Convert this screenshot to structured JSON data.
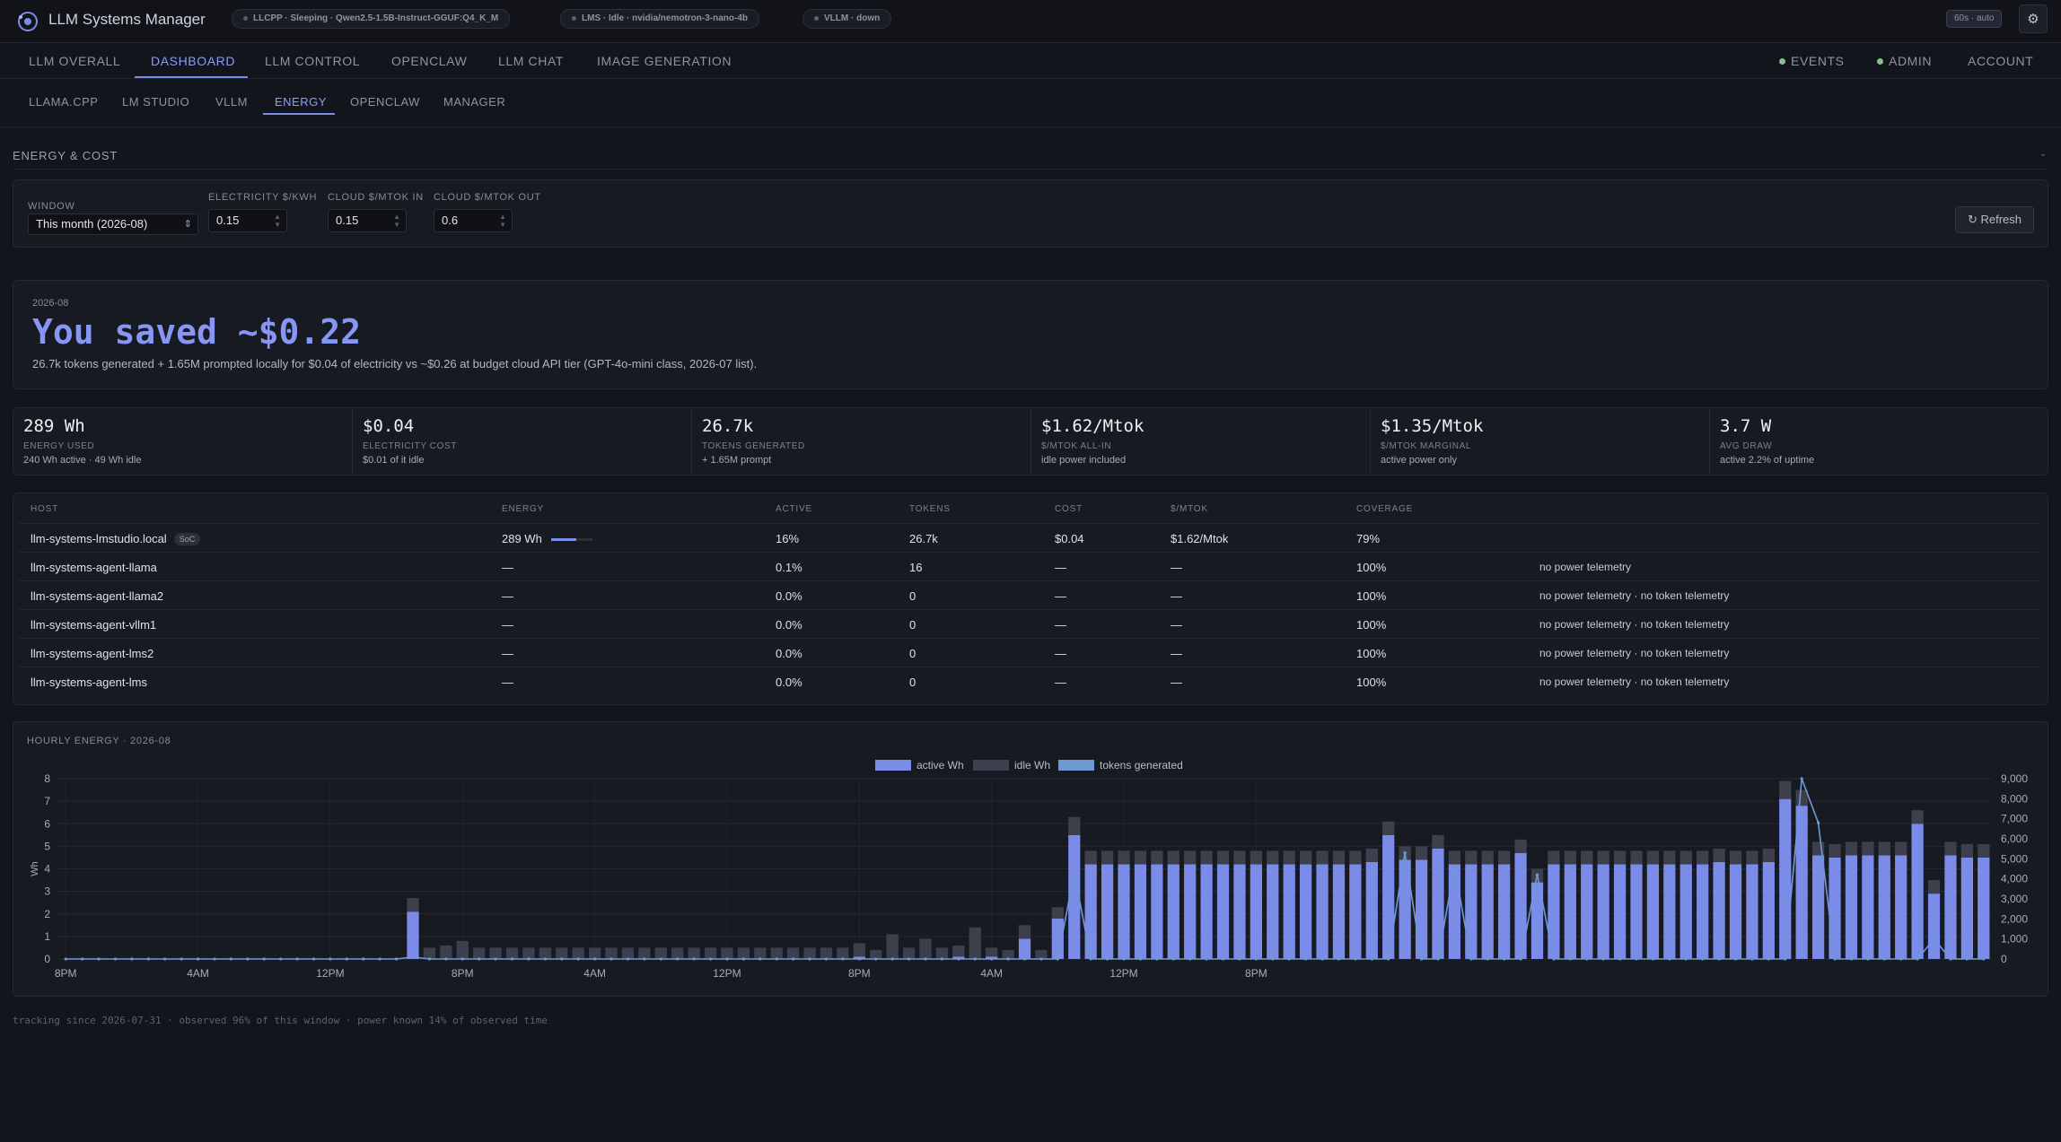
{
  "app": {
    "title": "LLM Systems Manager"
  },
  "status_pills": [
    {
      "text": "LLCPP · Sleeping · Qwen2.5-1.5B-Instruct-GGUF:Q4_K_M"
    },
    {
      "text": "LMS · Idle · nvidia/nemotron-3-nano-4b"
    },
    {
      "text": "VLLM · down"
    }
  ],
  "refresh_chip": "60s · auto",
  "settings_icon": "gear-icon",
  "main_nav": {
    "tabs": [
      "LLM OVERALL",
      "DASHBOARD",
      "LLM CONTROL",
      "OPENCLAW",
      "LLM CHAT",
      "IMAGE GENERATION"
    ],
    "active": "DASHBOARD",
    "right": [
      "EVENTS",
      "ADMIN",
      "ACCOUNT"
    ]
  },
  "sub_nav": {
    "tabs": [
      "LLAMA.CPP",
      "LM STUDIO",
      "VLLM",
      "ENERGY",
      "OPENCLAW",
      "MANAGER"
    ],
    "active": "ENERGY"
  },
  "section": {
    "title": "ENERGY & COST"
  },
  "controls": {
    "window_label": "WINDOW",
    "window_value": "This month (2026-08)",
    "electricity_label": "ELECTRICITY $/KWH",
    "electricity_value": "0.15",
    "cloud_in_label": "CLOUD $/MTOK IN",
    "cloud_in_value": "0.15",
    "cloud_out_label": "CLOUD $/MTOK OUT",
    "cloud_out_value": "0.6",
    "refresh_label": "↻ Refresh"
  },
  "savings": {
    "period": "2026-08",
    "headline": "You saved ~$0.22",
    "description": "26.7k tokens generated + 1.65M prompted locally for $0.04 of electricity vs ~$0.26 at budget cloud API tier (GPT-4o-mini class, 2026-07 list)."
  },
  "kpis": [
    {
      "value": "289 Wh",
      "label": "ENERGY USED",
      "sub": "240 Wh active · 49 Wh idle"
    },
    {
      "value": "$0.04",
      "label": "ELECTRICITY COST",
      "sub": "$0.01 of it idle"
    },
    {
      "value": "26.7k",
      "label": "TOKENS GENERATED",
      "sub": "+ 1.65M prompt"
    },
    {
      "value": "$1.62/Mtok",
      "label": "$/MTOK ALL-IN",
      "sub": "idle power included"
    },
    {
      "value": "$1.35/Mtok",
      "label": "$/MTOK MARGINAL",
      "sub": "active power only"
    },
    {
      "value": "3.7 W",
      "label": "AVG DRAW",
      "sub": "active 2.2% of uptime"
    }
  ],
  "table": {
    "columns": [
      "HOST",
      "ENERGY",
      "ACTIVE",
      "TOKENS",
      "COST",
      "$/MTOK",
      "COVERAGE"
    ],
    "rows": [
      {
        "host": "llm-systems-lmstudio.local",
        "badge": "SoC",
        "energy": "289 Wh",
        "energy_fraction": 0.62,
        "active": "16%",
        "tokens": "26.7k",
        "cost": "$0.04",
        "mtok": "$1.62/Mtok",
        "coverage": "79%",
        "note": ""
      },
      {
        "host": "llm-systems-agent-llama",
        "badge": "",
        "energy": "—",
        "energy_fraction": 0,
        "active": "0.1%",
        "tokens": "16",
        "cost": "—",
        "mtok": "—",
        "coverage": "100%",
        "note": "no power telemetry"
      },
      {
        "host": "llm-systems-agent-llama2",
        "badge": "",
        "energy": "—",
        "energy_fraction": 0,
        "active": "0.0%",
        "tokens": "0",
        "cost": "—",
        "mtok": "—",
        "coverage": "100%",
        "note": "no power telemetry · no token telemetry"
      },
      {
        "host": "llm-systems-agent-vllm1",
        "badge": "",
        "energy": "—",
        "energy_fraction": 0,
        "active": "0.0%",
        "tokens": "0",
        "cost": "—",
        "mtok": "—",
        "coverage": "100%",
        "note": "no power telemetry · no token telemetry"
      },
      {
        "host": "llm-systems-agent-lms2",
        "badge": "",
        "energy": "—",
        "energy_fraction": 0,
        "active": "0.0%",
        "tokens": "0",
        "cost": "—",
        "mtok": "—",
        "coverage": "100%",
        "note": "no power telemetry · no token telemetry"
      },
      {
        "host": "llm-systems-agent-lms",
        "badge": "",
        "energy": "—",
        "energy_fraction": 0,
        "active": "0.0%",
        "tokens": "0",
        "cost": "—",
        "mtok": "—",
        "coverage": "100%",
        "note": "no power telemetry · no token telemetry"
      }
    ]
  },
  "chart_title": "HOURLY ENERGY · 2026-08",
  "chart_data": {
    "type": "bar",
    "title": "HOURLY ENERGY · 2026-08",
    "ylabel": "Wh",
    "ylim": [
      0,
      8
    ],
    "y2lim": [
      0,
      9000
    ],
    "yticks": [
      0,
      1,
      2,
      3,
      4,
      5,
      6,
      7,
      8
    ],
    "y2ticks": [
      "0",
      "1,000",
      "2,000",
      "3,000",
      "4,000",
      "5,000",
      "6,000",
      "7,000",
      "8,000",
      "9,000"
    ],
    "xtick_labels": [
      "8PM",
      "4AM",
      "12PM",
      "8PM",
      "4AM",
      "12PM",
      "8PM",
      "4AM",
      "12PM",
      "8PM"
    ],
    "xtick_hours": [
      0,
      8,
      16,
      24,
      32,
      40,
      48,
      56,
      64,
      72
    ],
    "grid": true,
    "legend_position": "top-center",
    "series": [
      {
        "name": "active Wh",
        "color": "#7b8be8",
        "values": [
          0,
          0,
          0,
          0,
          0,
          0,
          0,
          0,
          0,
          0,
          0,
          0,
          0,
          0,
          0,
          0,
          0,
          0,
          0,
          0,
          0,
          2.1,
          0,
          0,
          0,
          0,
          0,
          0,
          0,
          0,
          0,
          0,
          0,
          0,
          0,
          0,
          0,
          0,
          0,
          0,
          0,
          0,
          0,
          0,
          0,
          0,
          0,
          0,
          0.1,
          0,
          0,
          0,
          0,
          0,
          0.1,
          0,
          0.1,
          0,
          0.9,
          0,
          1.8,
          5.5,
          4.2,
          4.2,
          4.2,
          4.2,
          4.2,
          4.2,
          4.2,
          4.2,
          4.2,
          4.2,
          4.2,
          4.2,
          4.2,
          4.2,
          4.2,
          4.2,
          4.2,
          4.3,
          5.5,
          4.4,
          4.4,
          4.9,
          4.2,
          4.2,
          4.2,
          4.2,
          4.7,
          3.4,
          4.2,
          4.2,
          4.2,
          4.2,
          4.2,
          4.2,
          4.2,
          4.2,
          4.2,
          4.2,
          4.3,
          4.2,
          4.2,
          4.3,
          7.1,
          6.8,
          4.6,
          4.5,
          4.6,
          4.6,
          4.6,
          4.6,
          6.0,
          2.9,
          4.6,
          4.5,
          4.5
        ]
      },
      {
        "name": "idle Wh",
        "color": "#3d404c",
        "values": [
          0,
          0,
          0,
          0,
          0,
          0,
          0,
          0,
          0,
          0,
          0,
          0,
          0,
          0,
          0,
          0,
          0,
          0,
          0,
          0,
          0,
          0.6,
          0.5,
          0.6,
          0.8,
          0.5,
          0.5,
          0.5,
          0.5,
          0.5,
          0.5,
          0.5,
          0.5,
          0.5,
          0.5,
          0.5,
          0.5,
          0.5,
          0.5,
          0.5,
          0.5,
          0.5,
          0.5,
          0.5,
          0.5,
          0.5,
          0.5,
          0.5,
          0.6,
          0.4,
          1.1,
          0.5,
          0.9,
          0.5,
          0.5,
          1.4,
          0.4,
          0.4,
          0.6,
          0.4,
          0.5,
          0.8,
          0.6,
          0.6,
          0.6,
          0.6,
          0.6,
          0.6,
          0.6,
          0.6,
          0.6,
          0.6,
          0.6,
          0.6,
          0.6,
          0.6,
          0.6,
          0.6,
          0.6,
          0.6,
          0.6,
          0.6,
          0.6,
          0.6,
          0.6,
          0.6,
          0.6,
          0.6,
          0.6,
          0.6,
          0.6,
          0.6,
          0.6,
          0.6,
          0.6,
          0.6,
          0.6,
          0.6,
          0.6,
          0.6,
          0.6,
          0.6,
          0.6,
          0.6,
          0.8,
          0.7,
          0.6,
          0.6,
          0.6,
          0.6,
          0.6,
          0.6,
          0.6,
          0.6,
          0.6,
          0.6,
          0.6
        ]
      },
      {
        "name": "tokens generated",
        "color": "#6e9ad4",
        "values": [
          0,
          0,
          0,
          0,
          0,
          0,
          0,
          0,
          0,
          0,
          0,
          0,
          0,
          0,
          0,
          0,
          0,
          0,
          0,
          0,
          0,
          100,
          0,
          0,
          0,
          0,
          0,
          0,
          0,
          0,
          0,
          0,
          0,
          0,
          0,
          0,
          0,
          0,
          0,
          0,
          0,
          0,
          0,
          0,
          0,
          0,
          0,
          0,
          0,
          0,
          0,
          0,
          0,
          0,
          0,
          0,
          0,
          0,
          0,
          0,
          0,
          4300,
          0,
          0,
          0,
          0,
          0,
          0,
          0,
          0,
          0,
          0,
          0,
          0,
          0,
          0,
          0,
          0,
          0,
          0,
          0,
          5300,
          0,
          0,
          4600,
          0,
          0,
          0,
          0,
          4200,
          0,
          0,
          0,
          0,
          0,
          0,
          0,
          0,
          0,
          0,
          0,
          0,
          0,
          0,
          0,
          9000,
          6800,
          0,
          0,
          0,
          0,
          0,
          0,
          1000,
          0,
          0,
          0,
          0
        ]
      }
    ]
  },
  "footer": "tracking since 2026-07-31 · observed 96% of this window · power known 14% of observed time"
}
